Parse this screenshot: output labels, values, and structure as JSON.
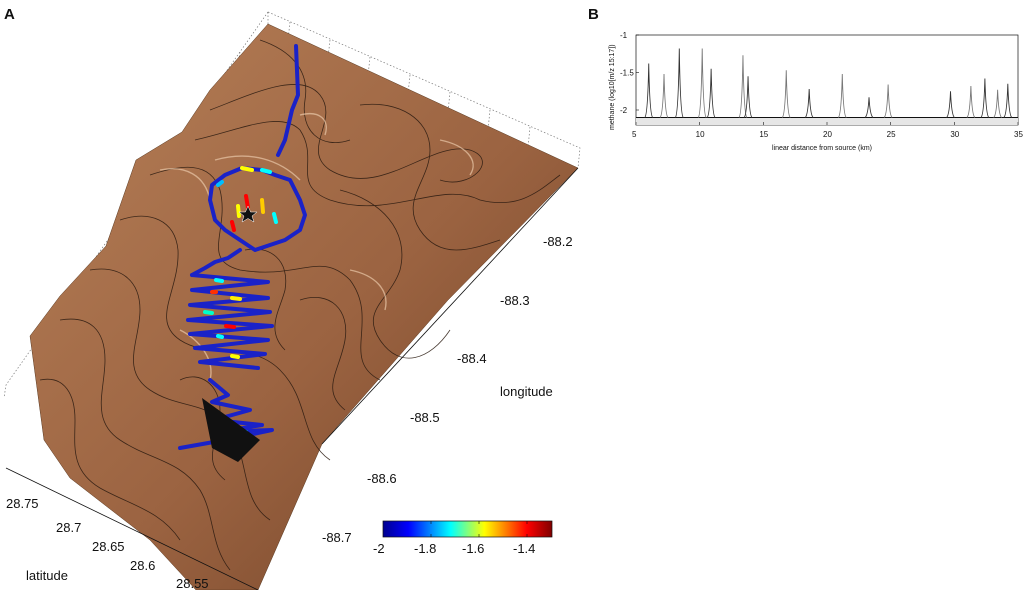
{
  "panels": {
    "a_label": "A",
    "b_label": "B"
  },
  "chart_data": [
    {
      "type": "surface",
      "xlabel": "latitude",
      "ylabel": "longitude",
      "latitude_ticks": [
        "28.75",
        "28.7",
        "28.65",
        "28.6",
        "28.55"
      ],
      "longitude_ticks": [
        "-88.2",
        "-88.3",
        "-88.4",
        "-88.5",
        "-88.6",
        "-88.7"
      ],
      "colorbar": {
        "ticks": [
          "-2",
          "-1.8",
          "-1.6",
          "-1.4"
        ],
        "range": [
          -2,
          -1.3
        ],
        "colors": [
          "#00008f",
          "#0000ff",
          "#00ffff",
          "#ffff00",
          "#ff0000",
          "#800000"
        ]
      },
      "surface_color": "#a36a45",
      "track_color": "#1a22c8"
    },
    {
      "type": "line",
      "xlabel": "linear distance from source (km)",
      "ylabel": "methane (log10[m/z 15:17])",
      "xlim": [
        5,
        35
      ],
      "ylim": [
        -2.2,
        -1
      ],
      "xticks": [
        "5",
        "10",
        "15",
        "20",
        "25",
        "30",
        "35"
      ],
      "yticks": [
        "-1",
        "-1.5",
        "-2"
      ],
      "baseline": -2.1,
      "peaks": [
        {
          "x": 6.0,
          "y": -1.38
        },
        {
          "x": 7.2,
          "y": -1.52
        },
        {
          "x": 8.4,
          "y": -1.18
        },
        {
          "x": 10.2,
          "y": -1.18
        },
        {
          "x": 10.9,
          "y": -1.45
        },
        {
          "x": 13.4,
          "y": -1.27
        },
        {
          "x": 13.8,
          "y": -1.55
        },
        {
          "x": 16.8,
          "y": -1.47
        },
        {
          "x": 18.6,
          "y": -1.72
        },
        {
          "x": 21.2,
          "y": -1.52
        },
        {
          "x": 23.3,
          "y": -1.83
        },
        {
          "x": 24.8,
          "y": -1.66
        },
        {
          "x": 29.7,
          "y": -1.75
        },
        {
          "x": 31.3,
          "y": -1.68
        },
        {
          "x": 32.4,
          "y": -1.58
        },
        {
          "x": 33.4,
          "y": -1.73
        },
        {
          "x": 34.2,
          "y": -1.65
        }
      ]
    }
  ]
}
